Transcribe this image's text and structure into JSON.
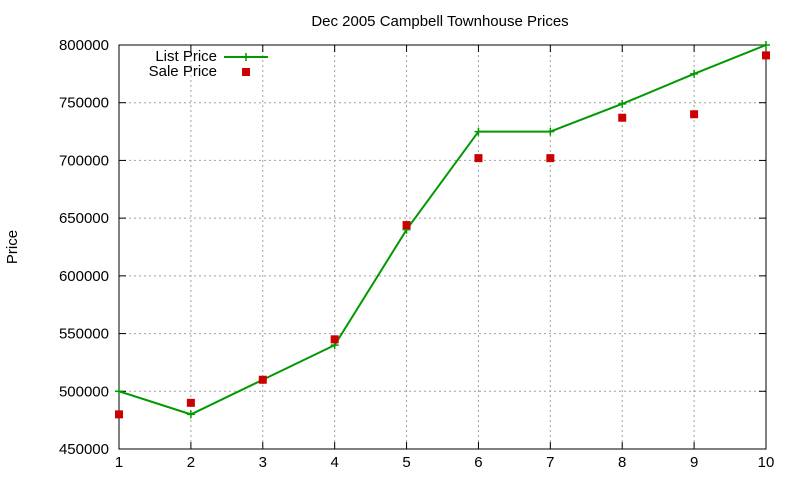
{
  "chart_data": {
    "type": "line",
    "title": "Dec 2005 Campbell Townhouse Prices",
    "xlabel": "",
    "ylabel": "Price",
    "x": [
      1,
      2,
      3,
      4,
      5,
      6,
      7,
      8,
      9,
      10
    ],
    "xlim": [
      1,
      10
    ],
    "ylim": [
      450000,
      800000
    ],
    "x_ticks": [
      1,
      2,
      3,
      4,
      5,
      6,
      7,
      8,
      9,
      10
    ],
    "y_ticks": [
      450000,
      500000,
      550000,
      600000,
      650000,
      700000,
      750000,
      800000
    ],
    "grid": true,
    "legend_position": "top-left",
    "series": [
      {
        "name": "List Price",
        "style": "line-with-plus-markers",
        "color": "#009900",
        "values": [
          500000,
          480000,
          510000,
          540000,
          640000,
          725000,
          725000,
          749000,
          775000,
          800000
        ]
      },
      {
        "name": "Sale Price",
        "style": "square-points",
        "color": "#cc0000",
        "values": [
          480000,
          490000,
          510000,
          545000,
          644000,
          702000,
          702000,
          737000,
          740000,
          791000
        ]
      }
    ]
  }
}
